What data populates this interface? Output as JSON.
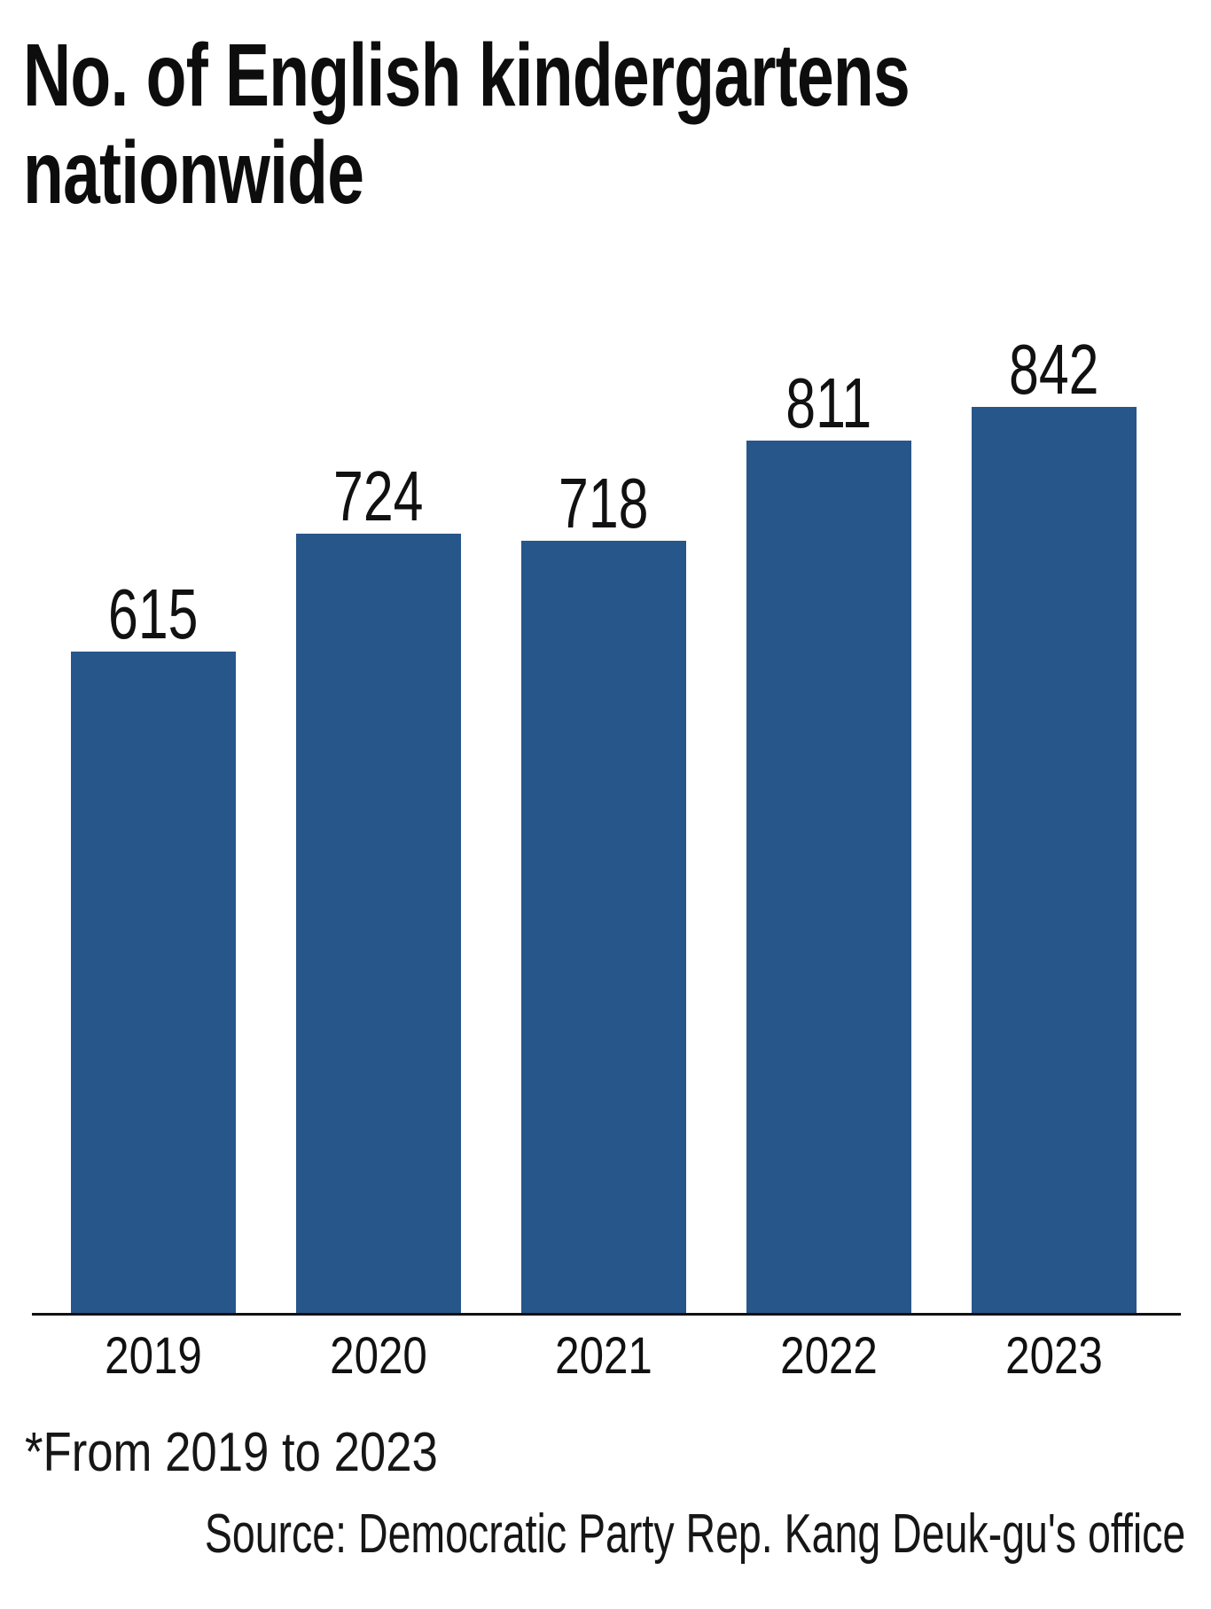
{
  "chart_data": {
    "type": "bar",
    "title": "No. of English kindergartens\nnationwide",
    "categories": [
      "2019",
      "2020",
      "2021",
      "2022",
      "2023"
    ],
    "values": [
      615,
      724,
      718,
      811,
      842
    ],
    "value_labels_shown": true,
    "footnote": "*From 2019 to 2023",
    "source": "Source: Democratic Party Rep. Kang Deuk-gu's office",
    "bar_color": "#27568a",
    "text_color": "#111111",
    "axis_color": "#111111",
    "xlabel": "",
    "ylabel": "",
    "ylim": [
      0,
      900
    ],
    "grid": false,
    "legend_position": "none",
    "y_axis_ticks_shown": false
  }
}
